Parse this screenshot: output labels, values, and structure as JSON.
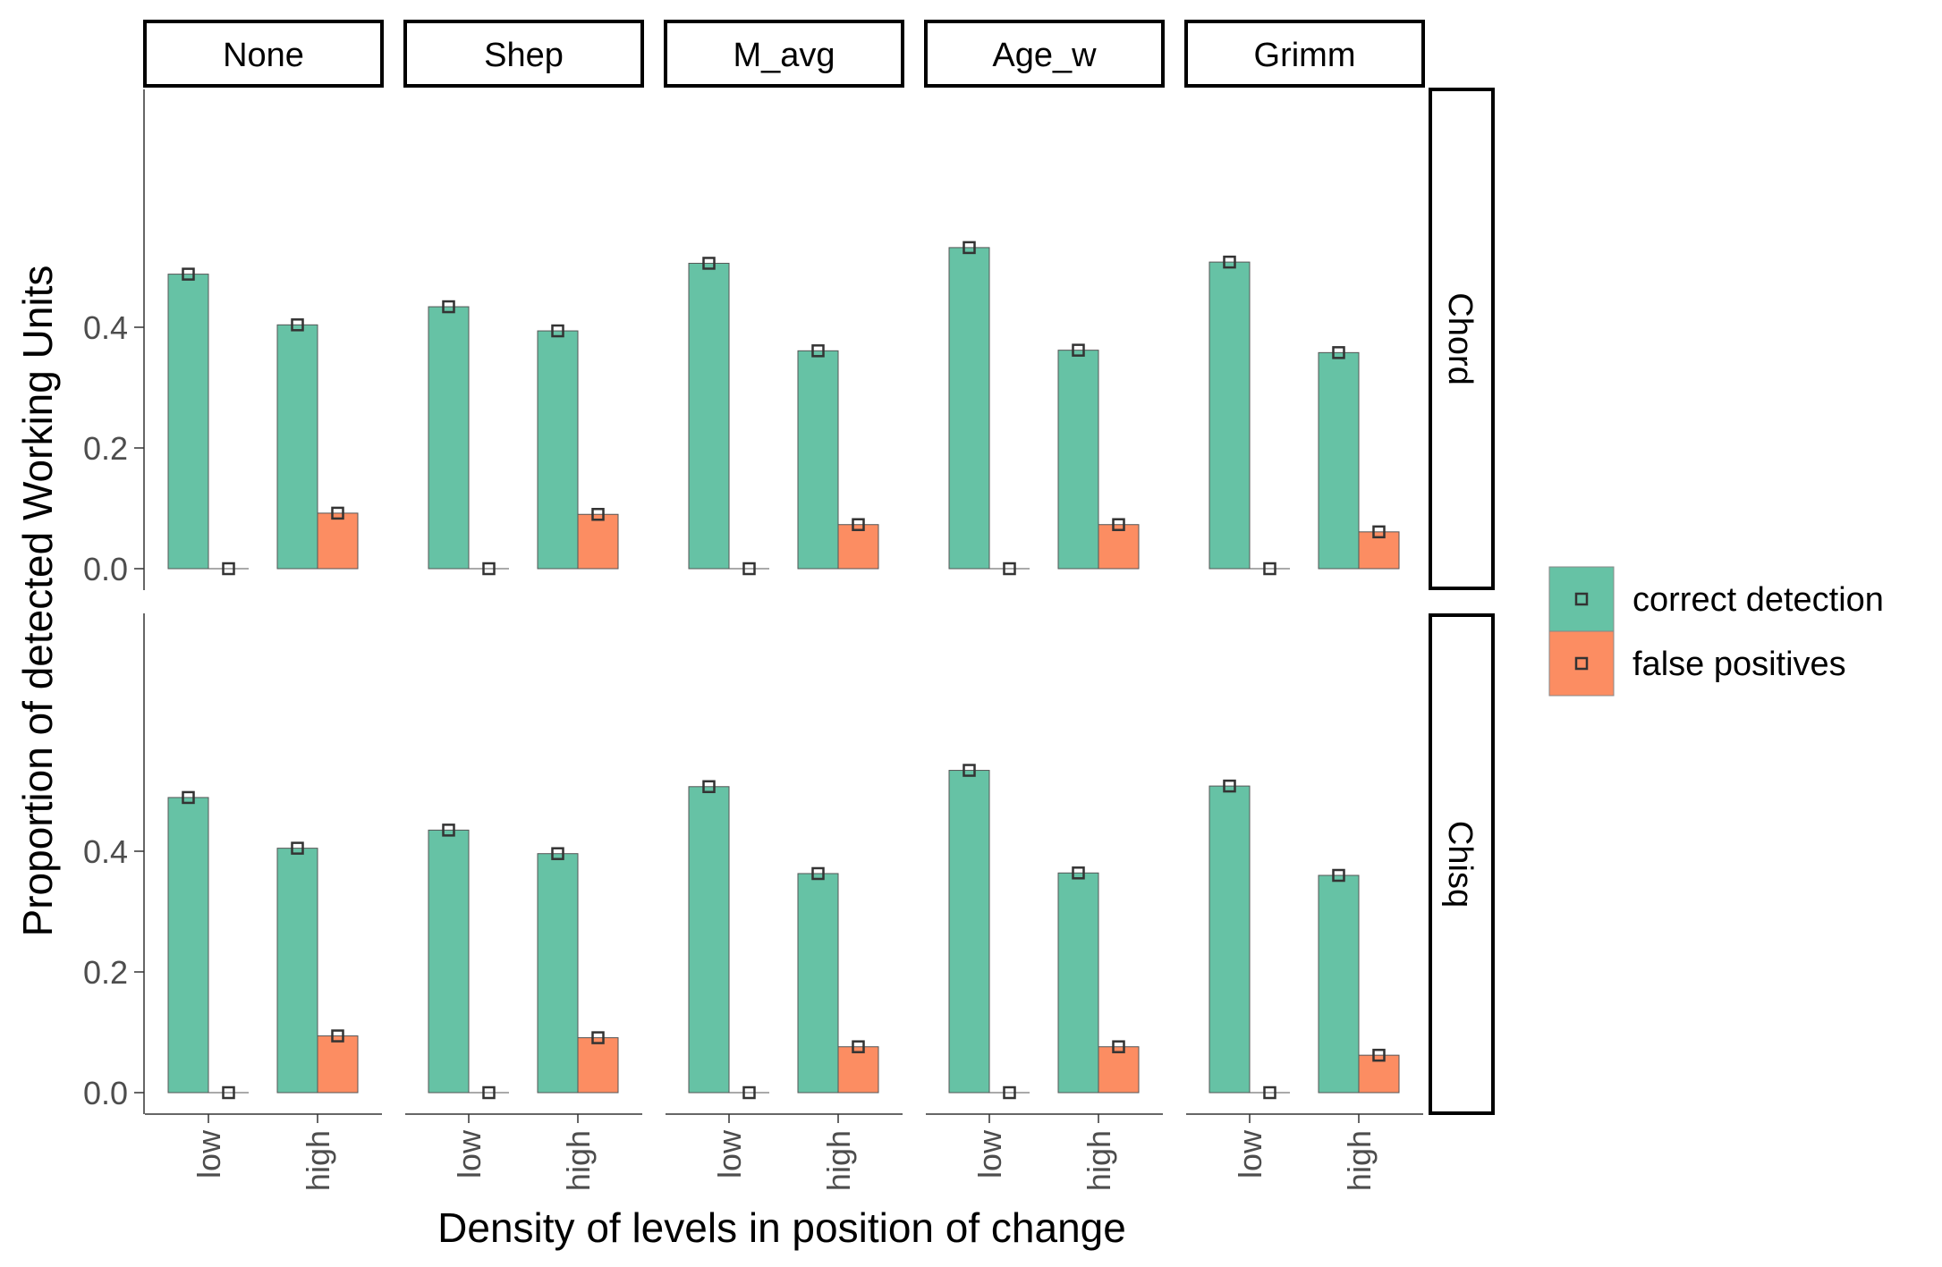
{
  "chart_data": {
    "type": "bar",
    "xlabel": "Density of levels in position of change",
    "ylabel": "Proportion of detected Working Units",
    "ylim": [
      0,
      0.56
    ],
    "y_ticks": [
      "0.0",
      "0.2",
      "0.4"
    ],
    "categories": [
      "low",
      "high"
    ],
    "columns": [
      "None",
      "Shep",
      "M_avg",
      "Age_w",
      "Grimm"
    ],
    "rows": [
      "Chord",
      "Chisq"
    ],
    "legend": {
      "position": "right",
      "entries": [
        "correct detection",
        "false positives"
      ]
    },
    "colors": {
      "correct detection": "#66c2a5",
      "false positives": "#fc8d62"
    },
    "grid": false,
    "panels": [
      {
        "row": "Chord",
        "column": "None",
        "series": [
          {
            "name": "correct detection",
            "values": [
              0.488,
              0.404
            ]
          },
          {
            "name": "false positives",
            "values": [
              0.0,
              0.092
            ]
          }
        ]
      },
      {
        "row": "Chord",
        "column": "Shep",
        "series": [
          {
            "name": "correct detection",
            "values": [
              0.434,
              0.394
            ]
          },
          {
            "name": "false positives",
            "values": [
              0.0,
              0.09
            ]
          }
        ]
      },
      {
        "row": "Chord",
        "column": "M_avg",
        "series": [
          {
            "name": "correct detection",
            "values": [
              0.506,
              0.361
            ]
          },
          {
            "name": "false positives",
            "values": [
              0.0,
              0.073
            ]
          }
        ]
      },
      {
        "row": "Chord",
        "column": "Age_w",
        "series": [
          {
            "name": "correct detection",
            "values": [
              0.532,
              0.362
            ]
          },
          {
            "name": "false positives",
            "values": [
              0.0,
              0.073
            ]
          }
        ]
      },
      {
        "row": "Chord",
        "column": "Grimm",
        "series": [
          {
            "name": "correct detection",
            "values": [
              0.508,
              0.358
            ]
          },
          {
            "name": "false positives",
            "values": [
              0.0,
              0.061
            ]
          }
        ]
      },
      {
        "row": "Chisq",
        "column": "None",
        "series": [
          {
            "name": "correct detection",
            "values": [
              0.489,
              0.405
            ]
          },
          {
            "name": "false positives",
            "values": [
              0.0,
              0.094
            ]
          }
        ]
      },
      {
        "row": "Chisq",
        "column": "Shep",
        "series": [
          {
            "name": "correct detection",
            "values": [
              0.435,
              0.396
            ]
          },
          {
            "name": "false positives",
            "values": [
              0.0,
              0.091
            ]
          }
        ]
      },
      {
        "row": "Chisq",
        "column": "M_avg",
        "series": [
          {
            "name": "correct detection",
            "values": [
              0.507,
              0.363
            ]
          },
          {
            "name": "false positives",
            "values": [
              0.0,
              0.076
            ]
          }
        ]
      },
      {
        "row": "Chisq",
        "column": "Age_w",
        "series": [
          {
            "name": "correct detection",
            "values": [
              0.534,
              0.364
            ]
          },
          {
            "name": "false positives",
            "values": [
              0.0,
              0.076
            ]
          }
        ]
      },
      {
        "row": "Chisq",
        "column": "Grimm",
        "series": [
          {
            "name": "correct detection",
            "values": [
              0.508,
              0.36
            ]
          },
          {
            "name": "false positives",
            "values": [
              0.0,
              0.062
            ]
          }
        ]
      }
    ]
  }
}
